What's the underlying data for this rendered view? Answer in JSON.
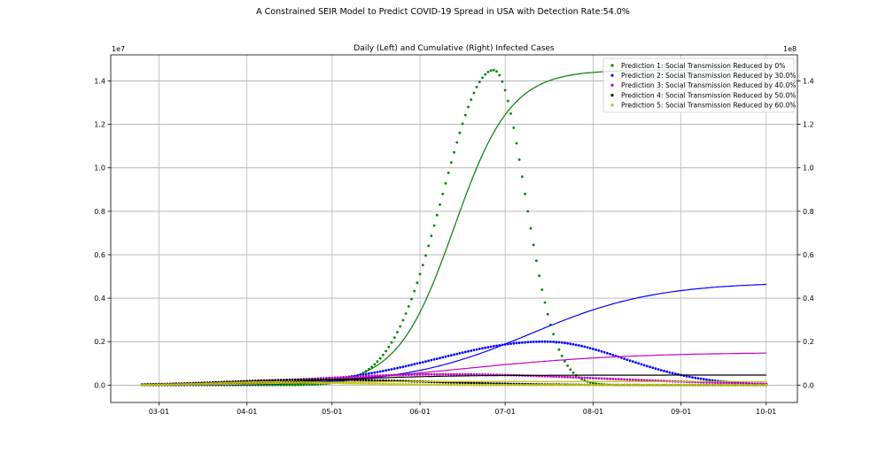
{
  "figure": {
    "suptitle": "A Constrained SEIR Model to Predict COVID-19 Spread in USA with Detection Rate:54.0%"
  },
  "chart_data": {
    "type": "scatter+line",
    "title": "Daily (Left) and Cumulative (Right) Infected Cases",
    "left_axis": {
      "multiplier": "1e7",
      "ylim": [
        -0.08,
        1.52
      ],
      "ticks": [
        0.0,
        0.2,
        0.4,
        0.6,
        0.8,
        1.0,
        1.2,
        1.4
      ],
      "tick_labels": [
        "0.0",
        "0.2",
        "0.4",
        "0.6",
        "0.8",
        "1.0",
        "1.2",
        "1.4"
      ]
    },
    "right_axis": {
      "multiplier": "1e8",
      "ylim": [
        -0.08,
        1.52
      ],
      "ticks": [
        0.0,
        0.2,
        0.4,
        0.6,
        0.8,
        1.0,
        1.2,
        1.4
      ],
      "tick_labels": [
        "0.0",
        "0.2",
        "0.4",
        "0.6",
        "0.8",
        "1.0",
        "1.2",
        "1.4"
      ]
    },
    "x_axis": {
      "start_date": "2020-02-24",
      "end_date": "2020-10-01",
      "xlim": [
        "2020-02-13",
        "2020-10-12"
      ],
      "ticks": [
        "2020-03-01",
        "2020-04-01",
        "2020-05-01",
        "2020-06-01",
        "2020-07-01",
        "2020-08-01",
        "2020-09-01",
        "2020-10-01"
      ],
      "tick_labels": [
        "03-01",
        "04-01",
        "05-01",
        "06-01",
        "07-01",
        "08-01",
        "09-01",
        "10-01"
      ]
    },
    "grid": true,
    "legend_position": "top-right",
    "series": [
      {
        "name": "Prediction 1: Social Transmission Reduced by 0%",
        "color": "#008000",
        "daily": {
          "peak_date": "2020-06-27",
          "peak": 1.45,
          "rise_width": 18,
          "fall_width": 11
        },
        "cumulative": {
          "final": 1.45,
          "mid_date": "2020-06-13",
          "width": 10
        }
      },
      {
        "name": "Prediction 2: Social Transmission Reduced by 30.0%",
        "color": "#0000ff",
        "daily": {
          "peak_date": "2020-07-15",
          "peak": 0.2,
          "rise_width": 38,
          "fall_width": 28
        },
        "cumulative": {
          "final": 0.475,
          "mid_date": "2020-07-10",
          "width": 22
        }
      },
      {
        "name": "Prediction 3: Social Transmission Reduced by 40.0%",
        "color": "#bf00bf",
        "daily": {
          "peak_date": "2020-06-10",
          "peak": 0.05,
          "rise_width": 45,
          "fall_width": 55
        },
        "cumulative": {
          "final": 0.155,
          "mid_date": "2020-06-15",
          "width": 30
        }
      },
      {
        "name": "Prediction 4: Social Transmission Reduced by 50.0%",
        "color": "#000000",
        "daily": {
          "peak_date": "2020-04-25",
          "peak": 0.025,
          "rise_width": 30,
          "fall_width": 40
        },
        "cumulative": {
          "final": 0.048,
          "mid_date": "2020-04-28",
          "width": 20
        }
      },
      {
        "name": "Prediction 5: Social Transmission Reduced by 60.0%",
        "color": "#bfbf00",
        "daily": {
          "peak_date": "2020-04-10",
          "peak": 0.013,
          "rise_width": 20,
          "fall_width": 30
        },
        "cumulative": {
          "final": 0.017,
          "mid_date": "2020-04-12",
          "width": 14
        }
      }
    ]
  }
}
